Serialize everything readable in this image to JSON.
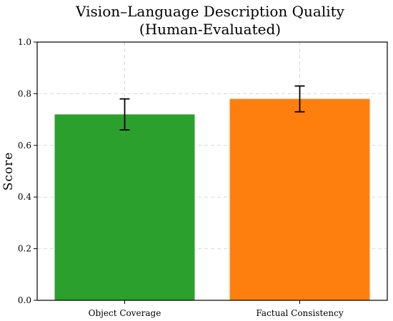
{
  "chart_data": {
    "type": "bar",
    "title": "Vision–Language Description Quality",
    "subtitle": "(Human-Evaluated)",
    "xlabel": "",
    "ylabel": "Score",
    "categories": [
      "Object Coverage",
      "Factual Consistency"
    ],
    "values": [
      0.72,
      0.78
    ],
    "error": [
      0.06,
      0.05
    ],
    "colors": [
      "#2ca02c",
      "#ff7f0e"
    ],
    "ylim": [
      0,
      1.0
    ],
    "yticks": [
      "0.0",
      "0.2",
      "0.4",
      "0.6",
      "0.8",
      "1.0"
    ],
    "grid": true,
    "legend": "none"
  }
}
